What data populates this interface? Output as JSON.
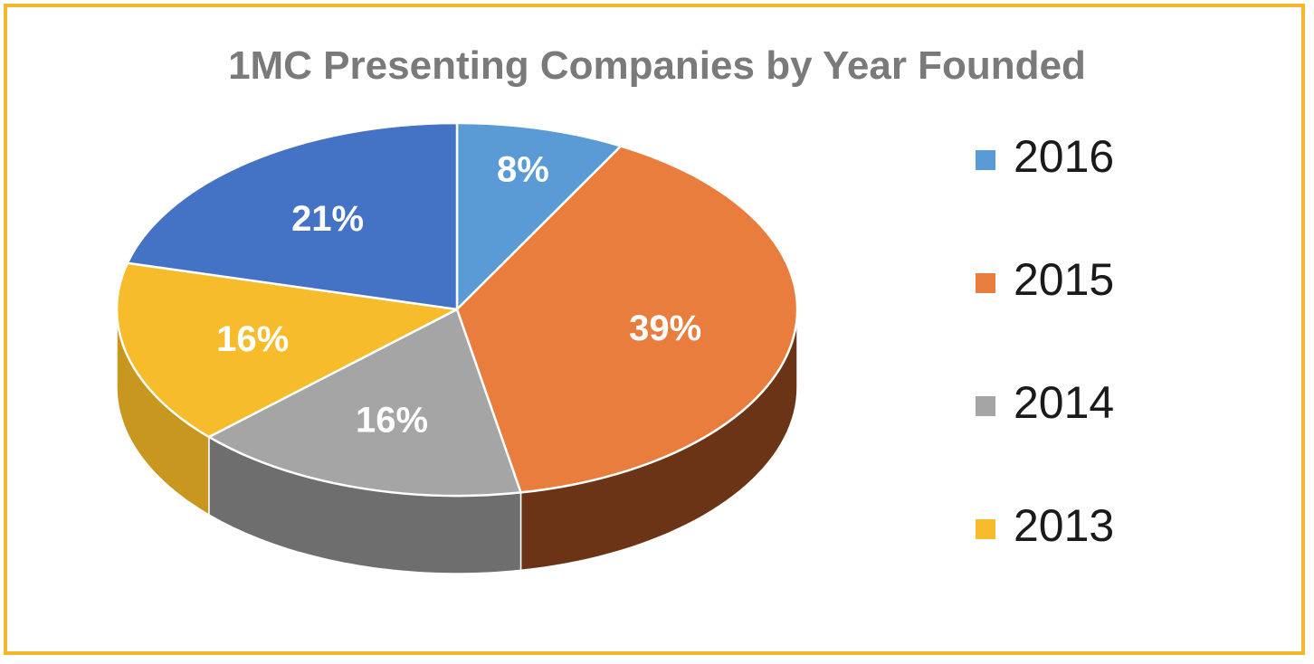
{
  "chart_data": {
    "type": "pie",
    "title": "1MC Presenting Companies by Year Founded",
    "style": "3d",
    "legend_position": "right",
    "slices": [
      {
        "label": "2016",
        "value": 8,
        "display": "8%",
        "color": "#5B9BD5",
        "side_color": "#3f6f99"
      },
      {
        "label": "2015",
        "value": 39,
        "display": "39%",
        "color": "#E87D3E",
        "side_color": "#6b3417"
      },
      {
        "label": "2014",
        "value": 16,
        "display": "16%",
        "color": "#A5A5A5",
        "side_color": "#6e6e6e"
      },
      {
        "label": "2013",
        "value": 16,
        "display": "16%",
        "color": "#F6BC2C",
        "side_color": "#c8971f"
      },
      {
        "label": "",
        "value": 21,
        "display": "21%",
        "color": "#4472C4",
        "side_color": "#2f4f8a"
      }
    ]
  },
  "legend": {
    "items": [
      {
        "label": "2016",
        "color": "#5B9BD5"
      },
      {
        "label": "2015",
        "color": "#E87D3E"
      },
      {
        "label": "2014",
        "color": "#A5A5A5"
      },
      {
        "label": "2013",
        "color": "#F6BC2C"
      }
    ]
  },
  "border_color": "#F5B72B",
  "title_color": "#7a7a7a"
}
